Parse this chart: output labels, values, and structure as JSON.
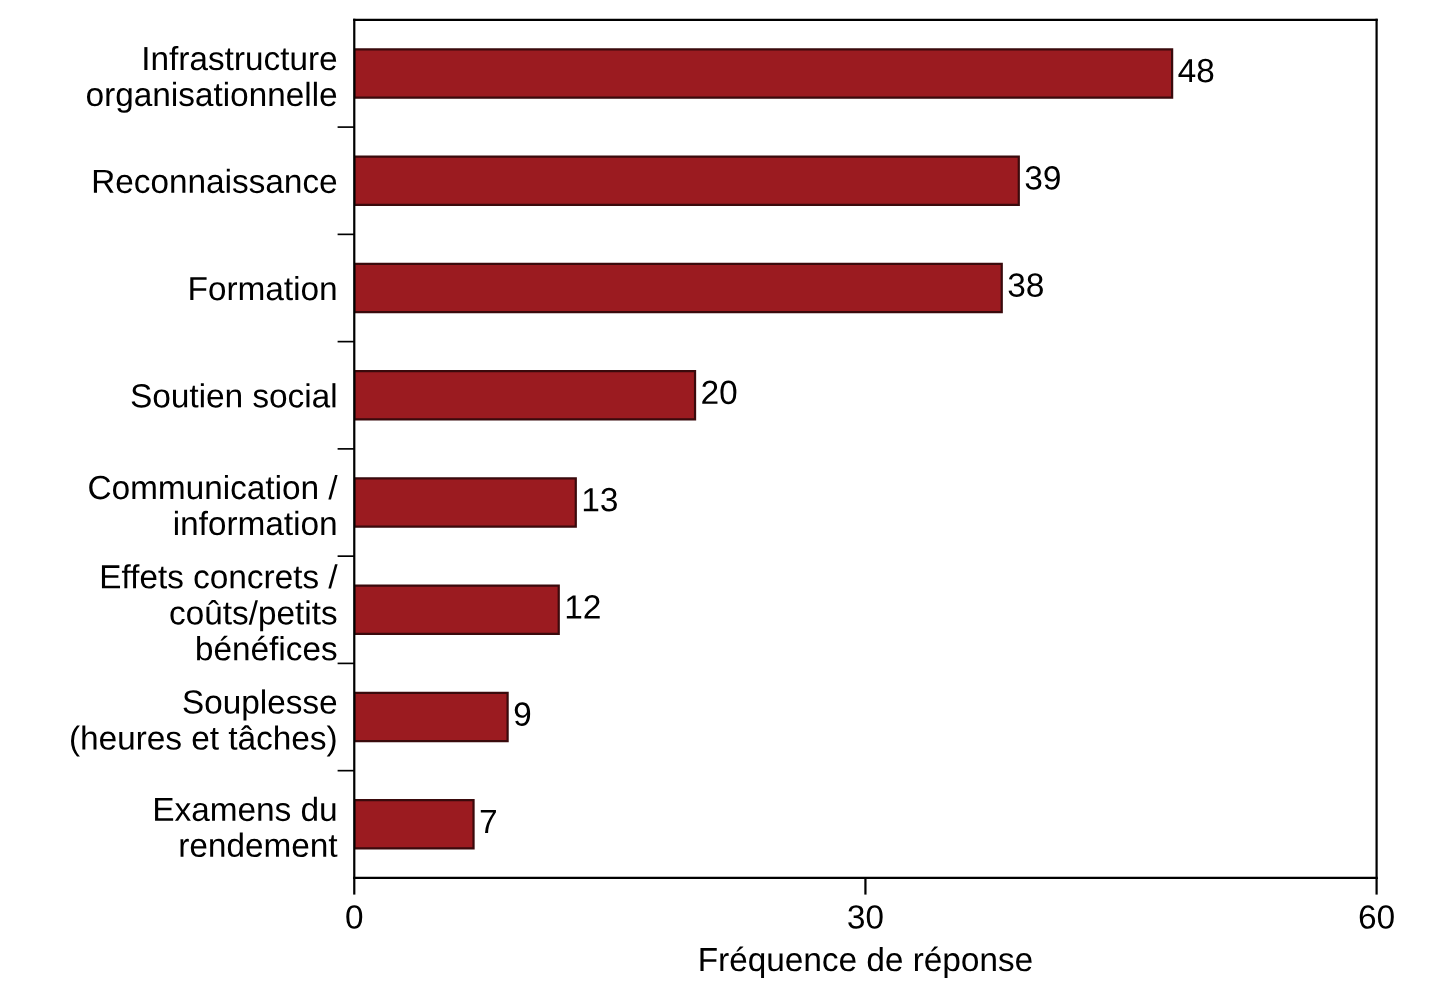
{
  "chart_data": {
    "type": "bar",
    "orientation": "horizontal",
    "xlabel": "Fréquence de réponse",
    "categories": [
      "Infrastructure\norganisationnelle",
      "Reconnaissance",
      "Formation",
      "Soutien social",
      "Communication /\ninformation",
      "Effets concrets /\ncoûts/petits\nbénéfices",
      "Souplesse\n(heures et tâches)",
      "Examens du\nrendement"
    ],
    "values": [
      48,
      39,
      38,
      20,
      13,
      12,
      9,
      7
    ],
    "color": "#9b1b20",
    "xlim": [
      0,
      60
    ],
    "xticks": [
      0,
      30,
      60
    ],
    "data_labels": true,
    "grid": false,
    "legend": false
  }
}
